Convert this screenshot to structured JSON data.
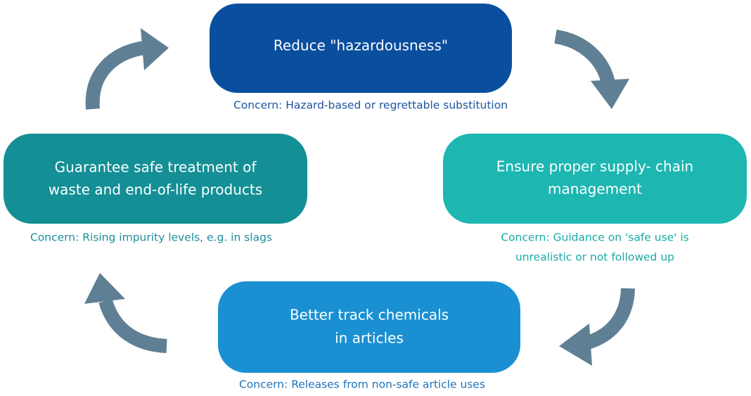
{
  "nodes": [
    {
      "label": [
        "Reduce \"hazardousness\""
      ],
      "concern": [
        "Concern: Hazard-based or regrettable substitution"
      ]
    },
    {
      "label": [
        "Ensure proper supply- chain",
        "management"
      ],
      "concern": [
        "Concern: Guidance on 'safe use'  is",
        "unrealistic or not followed up"
      ]
    },
    {
      "label": [
        "Better track chemicals",
        "in articles"
      ],
      "concern": [
        "Concern: Releases from non-safe article uses"
      ]
    },
    {
      "label": [
        "Guarantee safe treatment of",
        "waste and end-of-life products"
      ],
      "concern": [
        "Concern: Rising impurity levels, e.g. in slags"
      ]
    }
  ]
}
